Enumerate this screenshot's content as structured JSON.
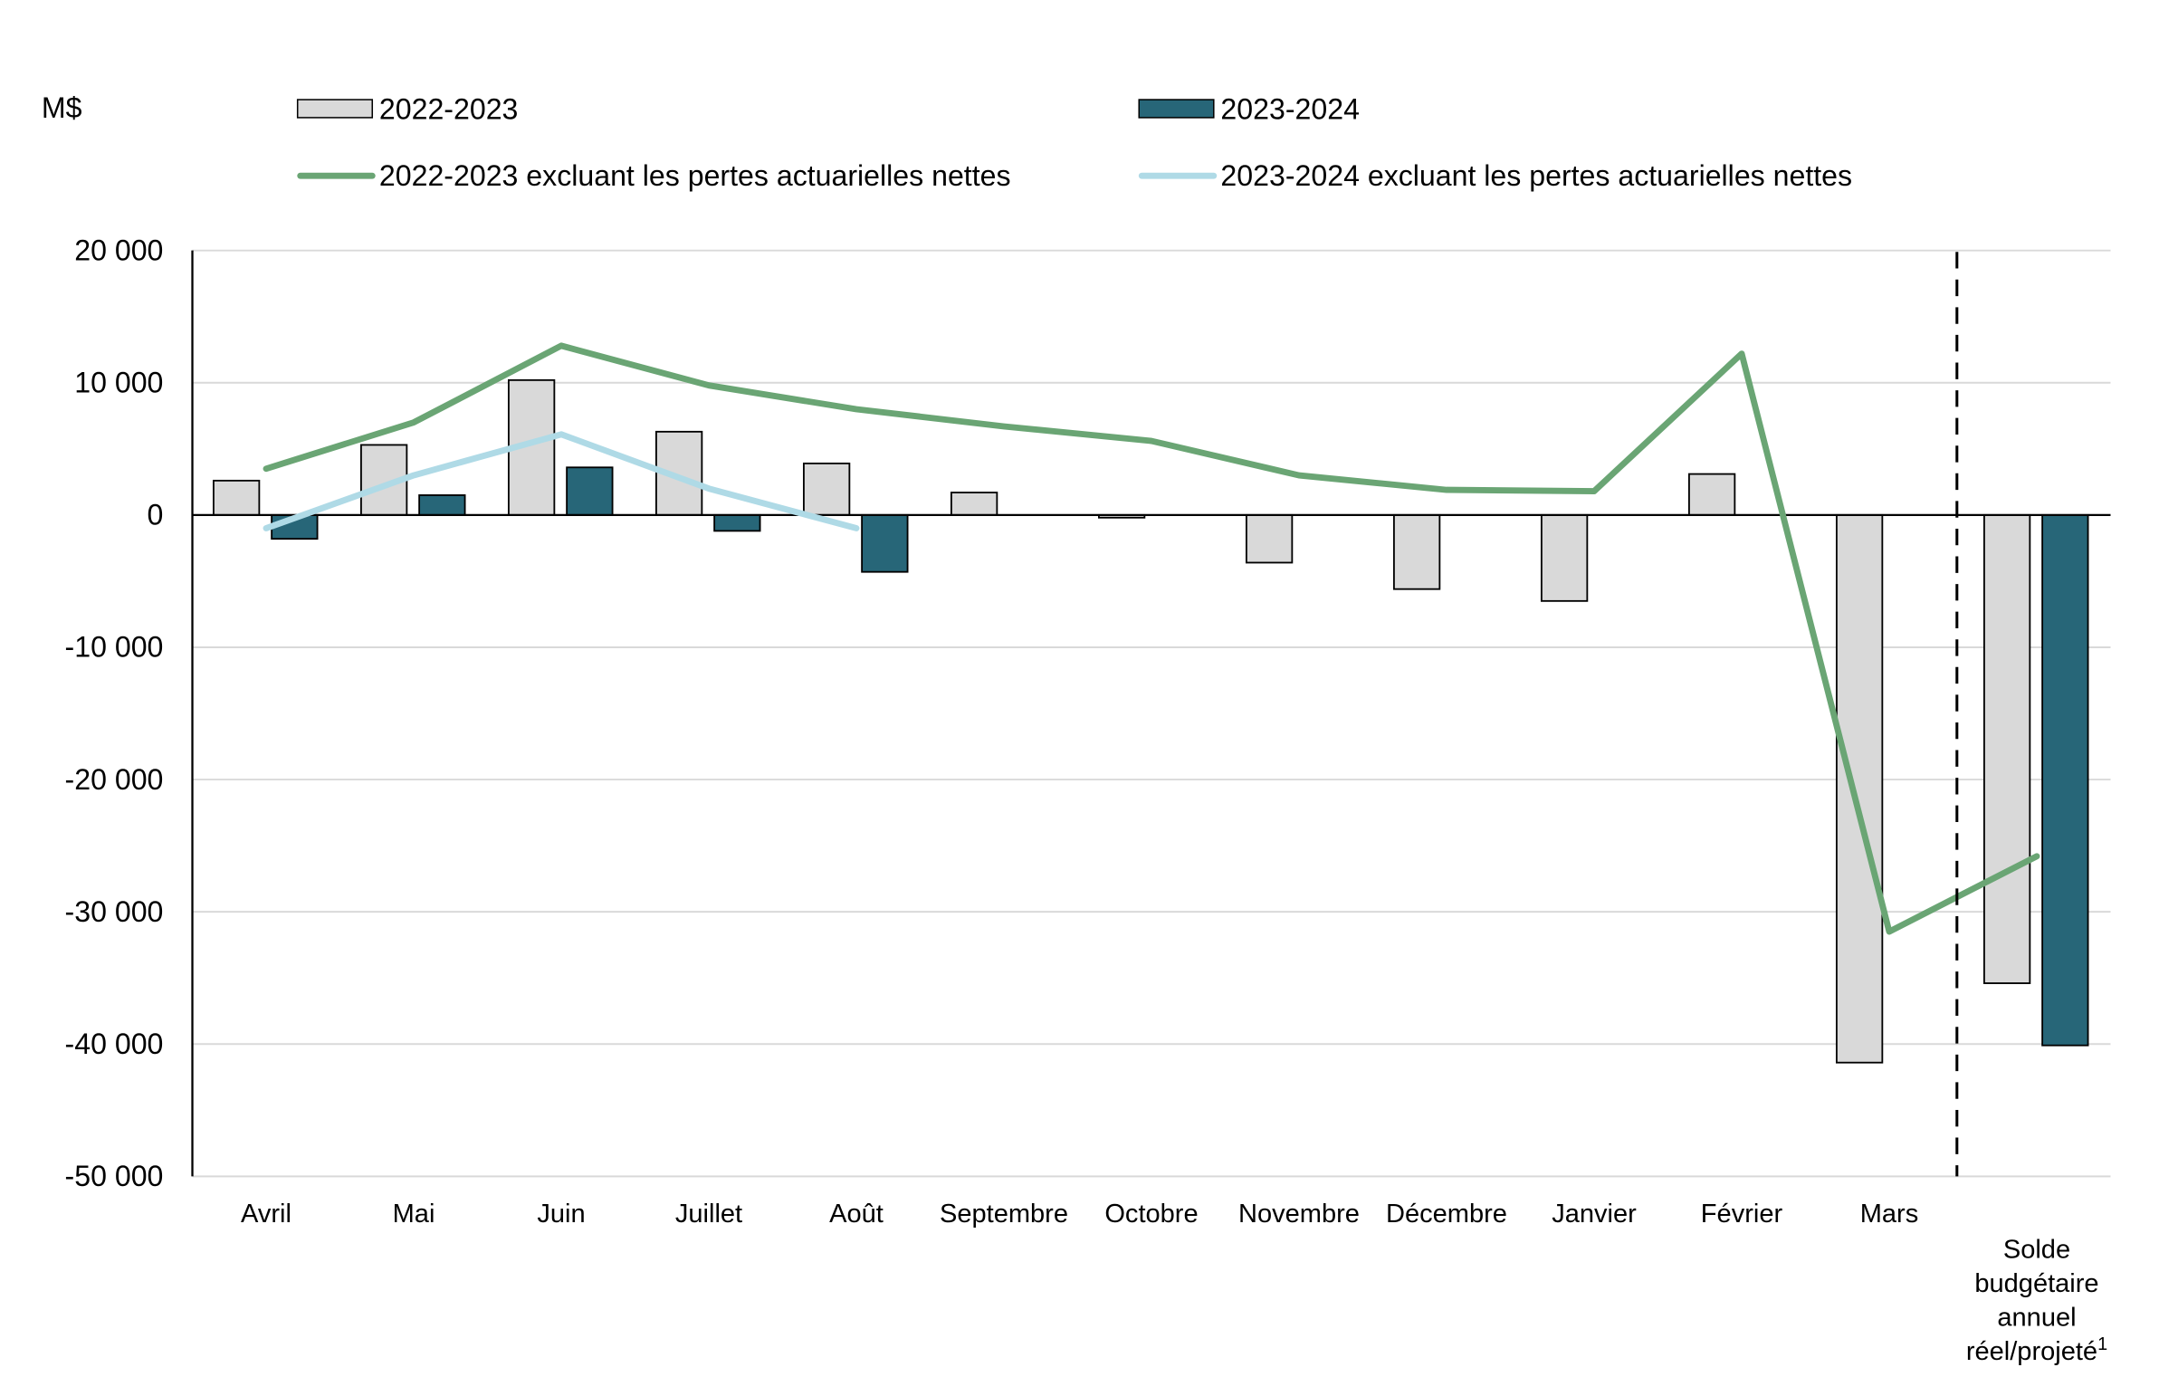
{
  "chart_data": {
    "type": "bar+line",
    "ylabel": "M$",
    "ylim": [
      -50000,
      20000
    ],
    "yticks": [
      20000,
      10000,
      0,
      -10000,
      -20000,
      -30000,
      -40000,
      -50000
    ],
    "ytick_labels": [
      "20 000",
      "10 000",
      "0",
      "-10 000",
      "-20 000",
      "-30 000",
      "-40 000",
      "-50 000"
    ],
    "grid": true,
    "legend_position": "top",
    "categories": [
      "Avril",
      "Mai",
      "Juin",
      "Juillet",
      "Août",
      "Septembre",
      "Octobre",
      "Novembre",
      "Décembre",
      "Janvier",
      "Février",
      "Mars",
      "Solde budgétaire annuel réel/projeté"
    ],
    "last_category_lines": [
      "Solde",
      "budgétaire",
      "annuel",
      "réel/projeté"
    ],
    "last_category_footnote": "1",
    "series": [
      {
        "name": "2022-2023",
        "type": "bar",
        "color": "#d9d9d9",
        "values": [
          2600,
          5300,
          10200,
          6300,
          3900,
          1700,
          -200,
          -3600,
          -5600,
          -6500,
          3100,
          -41400,
          -35400
        ]
      },
      {
        "name": "2023-2024",
        "type": "bar",
        "color": "#276678",
        "values": [
          -1800,
          1500,
          3600,
          -1200,
          -4300,
          null,
          null,
          null,
          null,
          null,
          null,
          null,
          -40100
        ]
      },
      {
        "name": "2022-2023 excluant les pertes actuarielles nettes",
        "type": "line",
        "color": "#6aa574",
        "values": [
          3500,
          7000,
          12800,
          9800,
          8000,
          6700,
          5600,
          3000,
          1900,
          1800,
          12200,
          -31500,
          -25800
        ]
      },
      {
        "name": "2023-2024 excluant les pertes actuarielles nettes",
        "type": "line",
        "color": "#afdae6",
        "values": [
          -1000,
          3000,
          6100,
          2000,
          -1000,
          null,
          null,
          null,
          null,
          null,
          null,
          null,
          null
        ]
      }
    ]
  }
}
